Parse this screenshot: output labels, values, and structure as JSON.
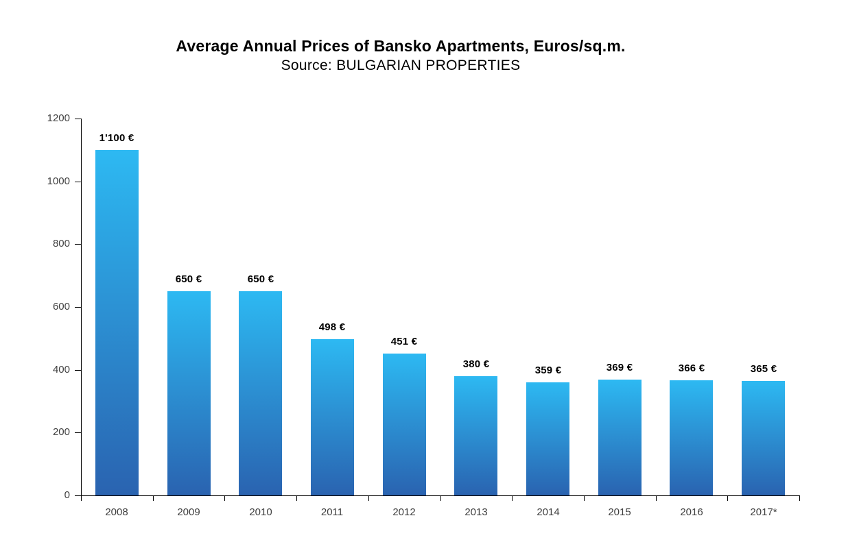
{
  "header": {
    "title": "Average Annual Prices of Bansko Apartments, Euros/sq.m.",
    "subtitle": "Source: BULGARIAN PROPERTIES"
  },
  "chart_data": {
    "type": "bar",
    "title": "Average Annual Prices of Bansko Apartments, Euros/sq.m.",
    "subtitle": "Source: BULGARIAN PROPERTIES",
    "categories": [
      "2008",
      "2009",
      "2010",
      "2011",
      "2012",
      "2013",
      "2014",
      "2015",
      "2016",
      "2017*"
    ],
    "values": [
      1100,
      650,
      650,
      498,
      451,
      380,
      359,
      369,
      366,
      365
    ],
    "value_labels": [
      "1'100 €",
      "650 €",
      "650 €",
      "498 €",
      "451 €",
      "380 €",
      "359 €",
      "369 €",
      "366 €",
      "365 €"
    ],
    "xlabel": "",
    "ylabel": "",
    "ylim": [
      0,
      1200
    ],
    "yticks": [
      0,
      200,
      400,
      600,
      800,
      1000,
      1200
    ],
    "grid": false,
    "legend": false,
    "colors": {
      "bar_gradient_top": "#2DB9F2",
      "bar_gradient_bottom": "#2A63B0",
      "axis": "#000000",
      "tick_label": "#404040",
      "data_label": "#000000",
      "background": "#ffffff"
    }
  }
}
